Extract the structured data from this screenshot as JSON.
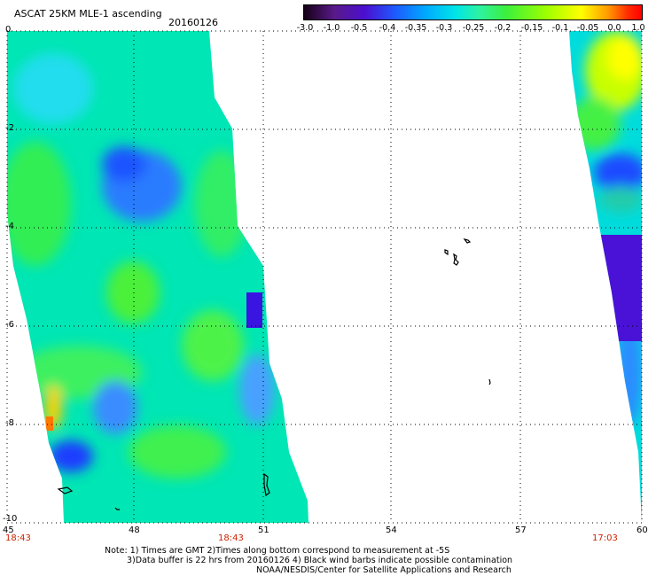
{
  "title": "ASCAT 25KM MLE-1 ascending",
  "date": "20160126",
  "colorbar": {
    "labels": [
      "-3.0",
      "-1.0",
      "-0.5",
      "-0.4",
      "-0.35",
      "-0.3",
      "-0.25",
      "-0.2",
      "-0.15",
      "-0.1",
      "-0.05",
      "0.0",
      "1.0"
    ]
  },
  "axes": {
    "lat_labels": [
      "0",
      "-2",
      "-4",
      "-6",
      "-8",
      "-10"
    ],
    "lon_labels": [
      "45",
      "48",
      "51",
      "54",
      "57",
      "60"
    ]
  },
  "pass_times": [
    "18:43",
    "18:43",
    "17:03"
  ],
  "notes": [
    "Note: 1) Times are GMT 2)Times along bottom correspond to measurement at -5S",
    "3)Data buffer is 22 hrs from 20160126 4) Black wind barbs indicate possible contamination",
    "NOAA/NESDIS/Center for Satellite Applications and Research"
  ],
  "colors": {
    "grid": "#000000",
    "time_label": "#cc2200",
    "background": "#ffffff"
  }
}
